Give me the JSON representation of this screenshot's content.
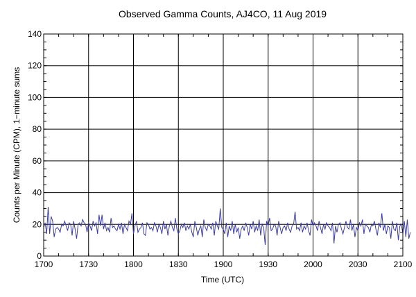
{
  "chart_data": {
    "type": "line",
    "title": "Observed Gamma Counts, AJ4CO, 11 Aug 2019",
    "xlabel": "Time (UTC)",
    "ylabel": "Counts per Minute (CPM), 1−minute sums",
    "xlim": [
      0,
      240
    ],
    "ylim": [
      0,
      140
    ],
    "grid": true,
    "x_ticks": [
      {
        "value": 0,
        "label": "1700"
      },
      {
        "value": 30,
        "label": "1730"
      },
      {
        "value": 60,
        "label": "1800"
      },
      {
        "value": 90,
        "label": "1830"
      },
      {
        "value": 120,
        "label": "1900"
      },
      {
        "value": 150,
        "label": "1930"
      },
      {
        "value": 180,
        "label": "2000"
      },
      {
        "value": 210,
        "label": "2030"
      },
      {
        "value": 240,
        "label": "2100"
      }
    ],
    "y_ticks": [
      {
        "value": 0,
        "label": "0"
      },
      {
        "value": 20,
        "label": "20"
      },
      {
        "value": 40,
        "label": "40"
      },
      {
        "value": 60,
        "label": "60"
      },
      {
        "value": 80,
        "label": "80"
      },
      {
        "value": 100,
        "label": "100"
      },
      {
        "value": 120,
        "label": "120"
      },
      {
        "value": 140,
        "label": "140"
      }
    ],
    "series": [
      {
        "name": "CPM",
        "color": "#3b3ba3",
        "x_start": 0,
        "x_step": 1,
        "values": [
          18,
          21,
          14,
          31,
          14,
          25,
          22,
          12,
          17,
          18,
          17,
          15,
          20,
          19,
          22,
          19,
          16,
          21,
          20,
          13,
          22,
          17,
          11,
          20,
          21,
          19,
          23,
          21,
          20,
          15,
          21,
          19,
          16,
          22,
          19,
          21,
          14,
          26,
          19,
          26,
          17,
          21,
          16,
          18,
          15,
          24,
          18,
          19,
          17,
          16,
          20,
          17,
          21,
          14,
          20,
          18,
          16,
          22,
          20,
          27,
          14,
          19,
          22,
          15,
          17,
          18,
          21,
          14,
          13,
          21,
          20,
          17,
          18,
          16,
          21,
          19,
          15,
          20,
          18,
          14,
          22,
          17,
          20,
          13,
          19,
          22,
          18,
          16,
          24,
          17,
          14,
          16,
          20,
          18,
          21,
          16,
          19,
          17,
          20,
          15,
          12,
          22,
          18,
          13,
          17,
          19,
          12,
          23,
          18,
          16,
          20,
          19,
          17,
          21,
          13,
          22,
          19,
          17,
          30,
          18,
          17,
          14,
          21,
          12,
          19,
          16,
          22,
          14,
          20,
          15,
          18,
          11,
          17,
          19,
          16,
          21,
          18,
          13,
          20,
          17,
          22,
          15,
          19,
          16,
          23,
          13,
          20,
          18,
          7,
          22,
          19,
          24,
          16,
          17,
          20,
          19,
          13,
          22,
          18,
          14,
          18,
          19,
          16,
          21,
          17,
          15,
          19,
          20,
          28,
          17,
          18,
          16,
          21,
          15,
          19,
          17,
          21,
          16,
          13,
          23,
          19,
          21,
          19,
          16,
          22,
          18,
          14,
          20,
          17,
          21,
          19,
          18,
          16,
          21,
          8,
          19,
          15,
          20,
          21,
          17,
          14,
          18,
          22,
          18,
          17,
          23,
          16,
          20,
          12,
          18,
          16,
          21,
          19,
          23,
          14,
          20,
          19,
          18,
          15,
          20,
          19,
          22,
          17,
          13,
          21,
          18,
          27,
          16,
          20,
          14,
          19,
          18,
          11,
          22,
          17,
          16,
          21,
          10,
          19,
          20,
          14,
          22,
          12,
          23,
          11,
          15
        ]
      }
    ]
  }
}
